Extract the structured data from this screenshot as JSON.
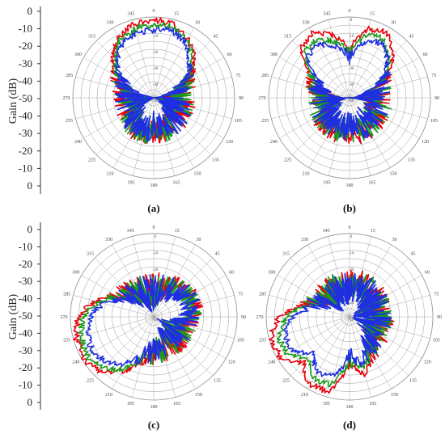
{
  "figure": {
    "y_axis_label": "Gain (dB)",
    "y_ticks": [
      "0",
      "-10",
      "-20",
      "-30",
      "-40",
      "-50",
      "-40",
      "-30",
      "-20",
      "-10",
      "0"
    ],
    "angle_labels": [
      "0",
      "15",
      "30",
      "45",
      "60",
      "75",
      "90",
      "105",
      "120",
      "135",
      "150",
      "165",
      "180",
      "195",
      "210",
      "225",
      "240",
      "255",
      "270",
      "285",
      "300",
      "315",
      "330",
      "345"
    ],
    "radial_labels": [
      "0",
      "-10",
      "-20",
      "-30",
      "-40",
      "-50"
    ],
    "series_colors": [
      "#e8000b",
      "#1a9a1a",
      "#1f2fe0"
    ]
  },
  "chart_data": [
    {
      "type": "polar",
      "panel_label": "(a)",
      "rlim": [
        -50,
        0
      ],
      "theta_unit": "deg",
      "series": [
        {
          "color": "#e8000b",
          "theta": [
            0,
            15,
            30,
            45,
            60,
            75,
            90,
            105,
            120,
            135,
            150,
            165,
            180,
            195,
            210,
            225,
            240,
            255,
            270,
            285,
            300,
            315,
            330,
            345
          ],
          "r": [
            -2,
            -3,
            -8,
            -15,
            -24,
            -32,
            -40,
            -33,
            -34,
            -32,
            -30,
            -28,
            -30,
            -26,
            -27,
            -30,
            -34,
            -36,
            -38,
            -33,
            -23,
            -14,
            -7,
            -3
          ]
        },
        {
          "color": "#1a9a1a",
          "theta": [
            0,
            15,
            30,
            45,
            60,
            75,
            90,
            105,
            120,
            135,
            150,
            165,
            180,
            195,
            210,
            225,
            240,
            255,
            270,
            285,
            300,
            315,
            330,
            345
          ],
          "r": [
            -5,
            -4,
            -9,
            -17,
            -26,
            -34,
            -41,
            -35,
            -35,
            -33,
            -31,
            -29,
            -31,
            -28,
            -29,
            -32,
            -35,
            -37,
            -39,
            -35,
            -25,
            -16,
            -9,
            -6
          ]
        },
        {
          "color": "#1f2fe0",
          "theta": [
            0,
            15,
            30,
            45,
            60,
            75,
            90,
            105,
            120,
            135,
            150,
            165,
            180,
            195,
            210,
            225,
            240,
            255,
            270,
            285,
            300,
            315,
            330,
            345
          ],
          "r": [
            -8,
            -7,
            -11,
            -19,
            -28,
            -35,
            -42,
            -37,
            -36,
            -34,
            -32,
            -31,
            -33,
            -30,
            -31,
            -34,
            -37,
            -39,
            -41,
            -37,
            -28,
            -18,
            -11,
            -9
          ]
        }
      ]
    },
    {
      "type": "polar",
      "panel_label": "(b)",
      "rlim": [
        -50,
        0
      ],
      "theta_unit": "deg",
      "series": [
        {
          "color": "#e8000b",
          "theta": [
            0,
            15,
            30,
            45,
            60,
            75,
            90,
            105,
            120,
            135,
            150,
            165,
            180,
            195,
            210,
            225,
            240,
            255,
            270,
            285,
            300,
            315,
            330,
            345
          ],
          "r": [
            -20,
            -6,
            -3,
            -12,
            -24,
            -33,
            -38,
            -32,
            -31,
            -30,
            -28,
            -27,
            -29,
            -28,
            -27,
            -29,
            -32,
            -34,
            -36,
            -30,
            -22,
            -8,
            -4,
            -10
          ]
        },
        {
          "color": "#1a9a1a",
          "theta": [
            0,
            15,
            30,
            45,
            60,
            75,
            90,
            105,
            120,
            135,
            150,
            165,
            180,
            195,
            210,
            225,
            240,
            255,
            270,
            285,
            300,
            315,
            330,
            345
          ],
          "r": [
            -22,
            -10,
            -8,
            -15,
            -25,
            -34,
            -39,
            -33,
            -32,
            -31,
            -30,
            -29,
            -31,
            -30,
            -29,
            -31,
            -33,
            -35,
            -37,
            -31,
            -23,
            -11,
            -9,
            -14
          ]
        },
        {
          "color": "#1f2fe0",
          "theta": [
            0,
            15,
            30,
            45,
            60,
            75,
            90,
            105,
            120,
            135,
            150,
            165,
            180,
            195,
            210,
            225,
            240,
            255,
            270,
            285,
            300,
            315,
            330,
            345
          ],
          "r": [
            -25,
            -14,
            -11,
            -17,
            -27,
            -35,
            -40,
            -35,
            -34,
            -33,
            -32,
            -31,
            -33,
            -32,
            -31,
            -33,
            -35,
            -37,
            -39,
            -33,
            -26,
            -14,
            -12,
            -17
          ]
        }
      ]
    },
    {
      "type": "polar",
      "panel_label": "(c)",
      "rlim": [
        -50,
        0
      ],
      "theta_unit": "deg",
      "series": [
        {
          "color": "#e8000b",
          "theta": [
            0,
            15,
            30,
            45,
            60,
            75,
            90,
            105,
            120,
            135,
            150,
            165,
            180,
            195,
            210,
            225,
            240,
            255,
            270,
            285,
            300,
            315,
            330,
            345
          ],
          "r": [
            -34,
            -33,
            -30,
            -26,
            -24,
            -24,
            -26,
            -32,
            -34,
            -33,
            -32,
            -30,
            -28,
            -22,
            -12,
            -4,
            -1,
            -2,
            -5,
            -14,
            -25,
            -30,
            -33,
            -34
          ]
        },
        {
          "color": "#1a9a1a",
          "theta": [
            0,
            15,
            30,
            45,
            60,
            75,
            90,
            105,
            120,
            135,
            150,
            165,
            180,
            195,
            210,
            225,
            240,
            255,
            270,
            285,
            300,
            315,
            330,
            345
          ],
          "r": [
            -35,
            -34,
            -31,
            -28,
            -26,
            -25,
            -27,
            -33,
            -35,
            -34,
            -33,
            -31,
            -29,
            -24,
            -14,
            -7,
            -4,
            -5,
            -8,
            -16,
            -26,
            -31,
            -34,
            -35
          ]
        },
        {
          "color": "#1f2fe0",
          "theta": [
            0,
            15,
            30,
            45,
            60,
            75,
            90,
            105,
            120,
            135,
            150,
            165,
            180,
            195,
            210,
            225,
            240,
            255,
            270,
            285,
            300,
            315,
            330,
            345
          ],
          "r": [
            -36,
            -35,
            -33,
            -29,
            -27,
            -27,
            -29,
            -34,
            -36,
            -35,
            -34,
            -33,
            -31,
            -27,
            -18,
            -11,
            -8,
            -9,
            -12,
            -19,
            -28,
            -33,
            -35,
            -36
          ]
        }
      ]
    },
    {
      "type": "polar",
      "panel_label": "(d)",
      "rlim": [
        -50,
        0
      ],
      "theta_unit": "deg",
      "series": [
        {
          "color": "#e8000b",
          "theta": [
            0,
            15,
            30,
            45,
            60,
            75,
            90,
            105,
            120,
            135,
            150,
            165,
            180,
            195,
            210,
            225,
            240,
            255,
            270,
            285,
            300,
            315,
            330,
            345
          ],
          "r": [
            -30,
            -28,
            -29,
            -31,
            -33,
            -35,
            -33,
            -34,
            -32,
            -30,
            -24,
            -14,
            -22,
            -4,
            -3,
            -11,
            -2,
            -1,
            -8,
            -22,
            -30,
            -32,
            -31,
            -30
          ]
        },
        {
          "color": "#1a9a1a",
          "theta": [
            0,
            15,
            30,
            45,
            60,
            75,
            90,
            105,
            120,
            135,
            150,
            165,
            180,
            195,
            210,
            225,
            240,
            255,
            270,
            285,
            300,
            315,
            330,
            345
          ],
          "r": [
            -31,
            -29,
            -30,
            -32,
            -34,
            -36,
            -34,
            -35,
            -33,
            -31,
            -26,
            -18,
            -24,
            -8,
            -7,
            -15,
            -6,
            -6,
            -12,
            -24,
            -31,
            -33,
            -32,
            -31
          ]
        },
        {
          "color": "#1f2fe0",
          "theta": [
            0,
            15,
            30,
            45,
            60,
            75,
            90,
            105,
            120,
            135,
            150,
            165,
            180,
            195,
            210,
            225,
            240,
            255,
            270,
            285,
            300,
            315,
            330,
            345
          ],
          "r": [
            -33,
            -31,
            -32,
            -34,
            -36,
            -37,
            -36,
            -37,
            -35,
            -33,
            -29,
            -22,
            -27,
            -13,
            -11,
            -19,
            -10,
            -10,
            -16,
            -27,
            -33,
            -35,
            -34,
            -33
          ]
        }
      ]
    }
  ]
}
